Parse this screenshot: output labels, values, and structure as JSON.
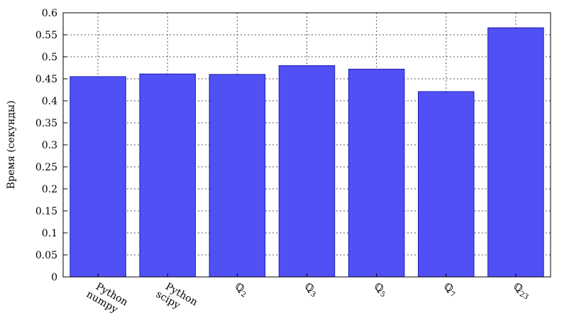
{
  "chart_data": {
    "type": "bar",
    "title": "",
    "xlabel": "",
    "ylabel": "Время (секунды)",
    "ylim": [
      0,
      0.6
    ],
    "yticks": [
      "0",
      "0.05",
      "0.1",
      "0.15",
      "0.2",
      "0.25",
      "0.3",
      "0.35",
      "0.4",
      "0.45",
      "0.5",
      "0.55",
      "0.6"
    ],
    "categories": [
      {
        "lines": [
          "Python",
          "numpy"
        ]
      },
      {
        "lines": [
          "Python",
          "scipy"
        ]
      },
      {
        "symbol": "ℚ",
        "sub": "2"
      },
      {
        "symbol": "ℚ",
        "sub": "3"
      },
      {
        "symbol": "ℚ",
        "sub": "5"
      },
      {
        "symbol": "ℚ",
        "sub": "7"
      },
      {
        "symbol": "ℚ",
        "sub": "23"
      }
    ],
    "values": [
      0.455,
      0.461,
      0.46,
      0.48,
      0.472,
      0.421,
      0.566
    ],
    "bar_color": "#5050f5",
    "bar_edge_color": "#1e1eb4",
    "grid": true,
    "legend": "none"
  }
}
